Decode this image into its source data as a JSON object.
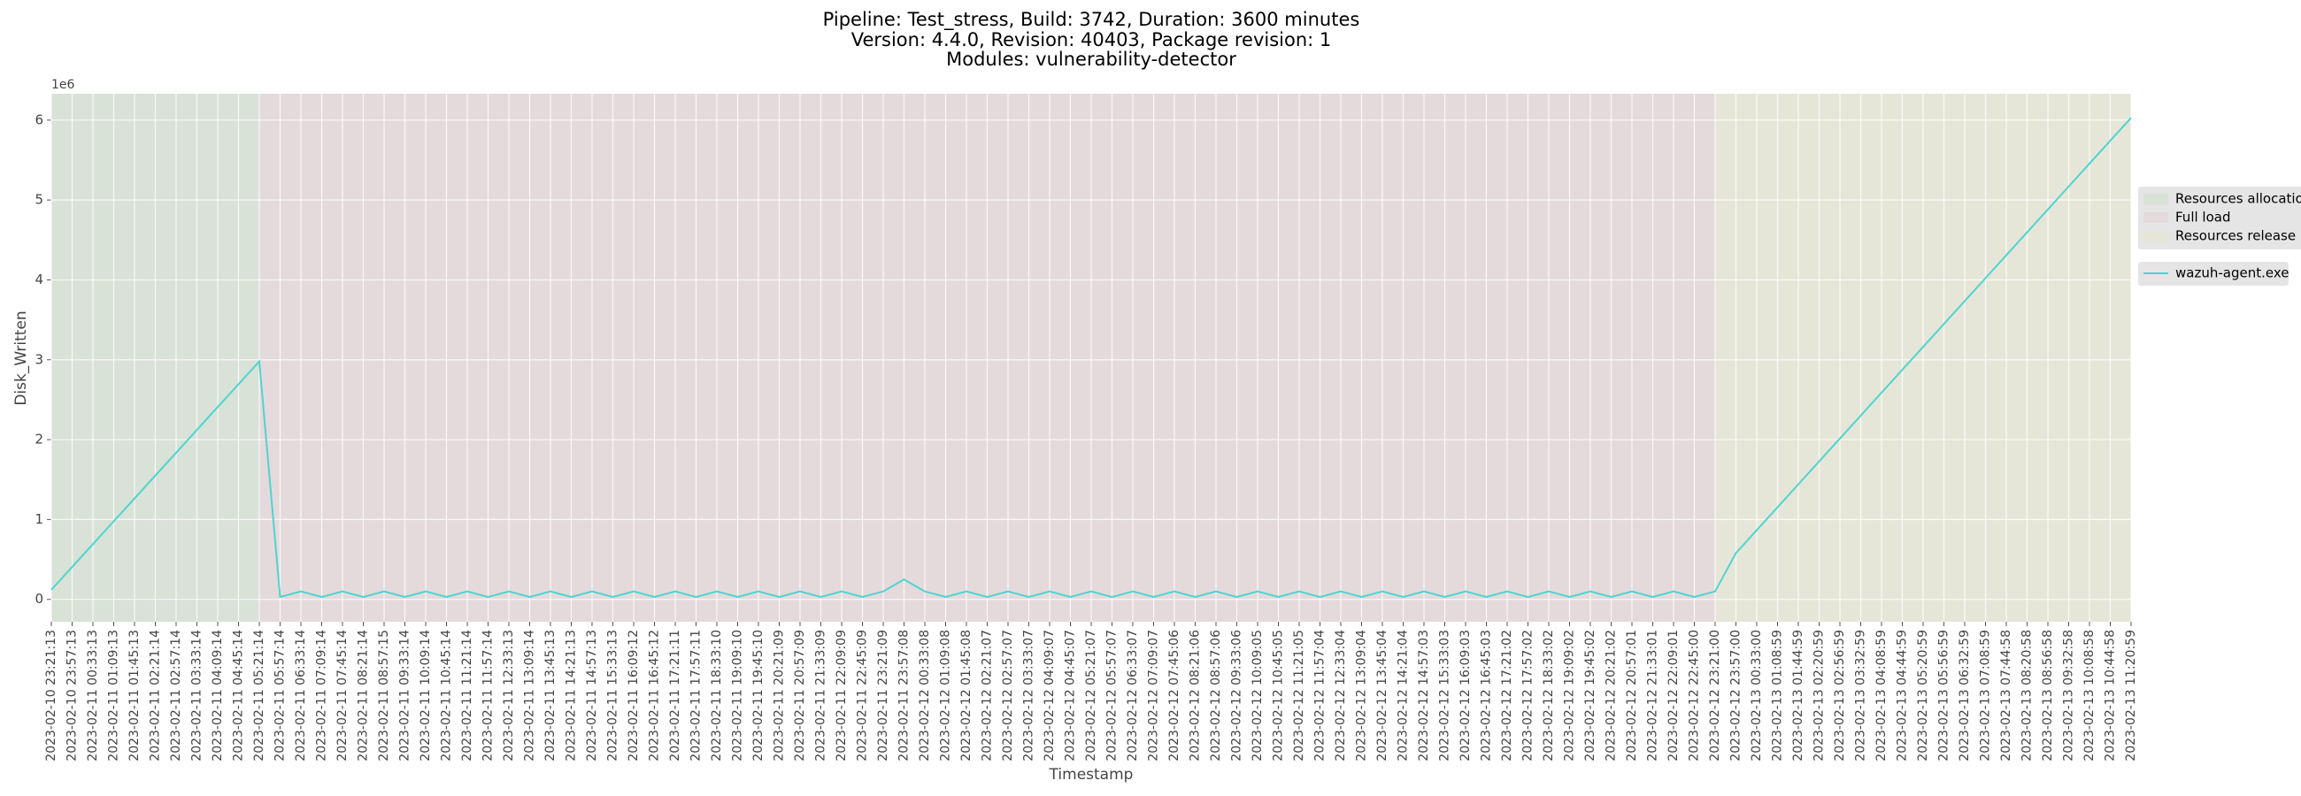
{
  "chart_data": {
    "type": "line",
    "title": [
      "Pipeline: Test_stress, Build: 3742, Duration: 3600 minutes",
      "Version: 4.4.0, Revision: 40403, Package revision: 1",
      "Modules: vulnerability-detector"
    ],
    "x_label": "Timestamp",
    "y_label": "Disk_Written",
    "y_offset_label": "1e6",
    "categories": [
      "2023-02-10 23:21:13",
      "2023-02-10 23:57:13",
      "2023-02-11 00:33:13",
      "2023-02-11 01:09:13",
      "2023-02-11 01:45:13",
      "2023-02-11 02:21:14",
      "2023-02-11 02:57:14",
      "2023-02-11 03:33:14",
      "2023-02-11 04:09:14",
      "2023-02-11 04:45:14",
      "2023-02-11 05:21:14",
      "2023-02-11 05:57:14",
      "2023-02-11 06:33:14",
      "2023-02-11 07:09:14",
      "2023-02-11 07:45:14",
      "2023-02-11 08:21:14",
      "2023-02-11 08:57:15",
      "2023-02-11 09:33:14",
      "2023-02-11 10:09:14",
      "2023-02-11 10:45:14",
      "2023-02-11 11:21:14",
      "2023-02-11 11:57:14",
      "2023-02-11 12:33:13",
      "2023-02-11 13:09:14",
      "2023-02-11 13:45:13",
      "2023-02-11 14:21:13",
      "2023-02-11 14:57:13",
      "2023-02-11 15:33:13",
      "2023-02-11 16:09:12",
      "2023-02-11 16:45:12",
      "2023-02-11 17:21:11",
      "2023-02-11 17:57:11",
      "2023-02-11 18:33:10",
      "2023-02-11 19:09:10",
      "2023-02-11 19:45:10",
      "2023-02-11 20:21:09",
      "2023-02-11 20:57:09",
      "2023-02-11 21:33:09",
      "2023-02-11 22:09:09",
      "2023-02-11 22:45:09",
      "2023-02-11 23:21:09",
      "2023-02-11 23:57:08",
      "2023-02-12 00:33:08",
      "2023-02-12 01:09:08",
      "2023-02-12 01:45:08",
      "2023-02-12 02:21:07",
      "2023-02-12 02:57:07",
      "2023-02-12 03:33:07",
      "2023-02-12 04:09:07",
      "2023-02-12 04:45:07",
      "2023-02-12 05:21:07",
      "2023-02-12 05:57:07",
      "2023-02-12 06:33:07",
      "2023-02-12 07:09:07",
      "2023-02-12 07:45:06",
      "2023-02-12 08:21:06",
      "2023-02-12 08:57:06",
      "2023-02-12 09:33:06",
      "2023-02-12 10:09:05",
      "2023-02-12 10:45:05",
      "2023-02-12 11:21:05",
      "2023-02-12 11:57:04",
      "2023-02-12 12:33:04",
      "2023-02-12 13:09:04",
      "2023-02-12 13:45:04",
      "2023-02-12 14:21:04",
      "2023-02-12 14:57:03",
      "2023-02-12 15:33:03",
      "2023-02-12 16:09:03",
      "2023-02-12 16:45:03",
      "2023-02-12 17:21:02",
      "2023-02-12 17:57:02",
      "2023-02-12 18:33:02",
      "2023-02-12 19:09:02",
      "2023-02-12 19:45:02",
      "2023-02-12 20:21:02",
      "2023-02-12 20:57:01",
      "2023-02-12 21:33:01",
      "2023-02-12 22:09:01",
      "2023-02-12 22:45:00",
      "2023-02-12 23:21:00",
      "2023-02-12 23:57:00",
      "2023-02-13 00:33:00",
      "2023-02-13 01:08:59",
      "2023-02-13 01:44:59",
      "2023-02-13 02:20:59",
      "2023-02-13 02:56:59",
      "2023-02-13 03:32:59",
      "2023-02-13 04:08:59",
      "2023-02-13 04:44:59",
      "2023-02-13 05:20:59",
      "2023-02-13 05:56:59",
      "2023-02-13 06:32:59",
      "2023-02-13 07:08:59",
      "2023-02-13 07:44:58",
      "2023-02-13 08:20:58",
      "2023-02-13 08:56:58",
      "2023-02-13 09:32:58",
      "2023-02-13 10:08:58",
      "2023-02-13 10:44:58",
      "2023-02-13 11:20:59"
    ],
    "series": [
      {
        "name": "wazuh-agent.exe",
        "color": "#4fd4d0",
        "values": [
          120000,
          406000,
          692000,
          978000,
          1264000,
          1550000,
          1836000,
          2122000,
          2408000,
          2694000,
          2980000,
          30000,
          100000,
          30000,
          100000,
          30000,
          100000,
          30000,
          100000,
          30000,
          100000,
          30000,
          100000,
          30000,
          100000,
          30000,
          100000,
          30000,
          100000,
          30000,
          100000,
          30000,
          100000,
          30000,
          100000,
          30000,
          100000,
          30000,
          100000,
          30000,
          100000,
          250000,
          100000,
          30000,
          100000,
          30000,
          100000,
          30000,
          100000,
          30000,
          100000,
          30000,
          100000,
          30000,
          100000,
          30000,
          100000,
          30000,
          100000,
          30000,
          100000,
          30000,
          100000,
          30000,
          100000,
          30000,
          100000,
          30000,
          100000,
          30000,
          100000,
          30000,
          100000,
          30000,
          100000,
          30000,
          100000,
          30000,
          100000,
          30000,
          100000,
          580000,
          866800,
          1153600,
          1440400,
          1727200,
          2014000,
          2300800,
          2587600,
          2874400,
          3161200,
          3448000,
          3734800,
          4021600,
          4308400,
          4595200,
          4882000,
          5168800,
          5455600,
          5742400,
          6029200
        ]
      }
    ],
    "regions": [
      {
        "name": "Resources allocation",
        "color": "#d8e2d6",
        "start": "2023-02-10 23:21:13",
        "end": "2023-02-11 05:21:14"
      },
      {
        "name": "Full load",
        "color": "#e5dadb",
        "start": "2023-02-11 05:21:14",
        "end": "2023-02-12 23:21:00"
      },
      {
        "name": "Resources release",
        "color": "#e6e6d8",
        "start": "2023-02-12 23:21:00",
        "end": "2023-02-13 11:20:59"
      }
    ],
    "ylim": [
      -280000,
      6330000
    ],
    "yticks": [
      0,
      {
        "value": 1000000,
        "label": "1"
      },
      {
        "value": 2000000,
        "label": "2"
      },
      {
        "value": 3000000,
        "label": "3"
      },
      {
        "value": 4000000,
        "label": "4"
      },
      {
        "value": 5000000,
        "label": "5"
      },
      {
        "value": 6000000,
        "label": "6"
      }
    ],
    "grid": true,
    "legend": "right",
    "background": "#e5e5e5"
  }
}
